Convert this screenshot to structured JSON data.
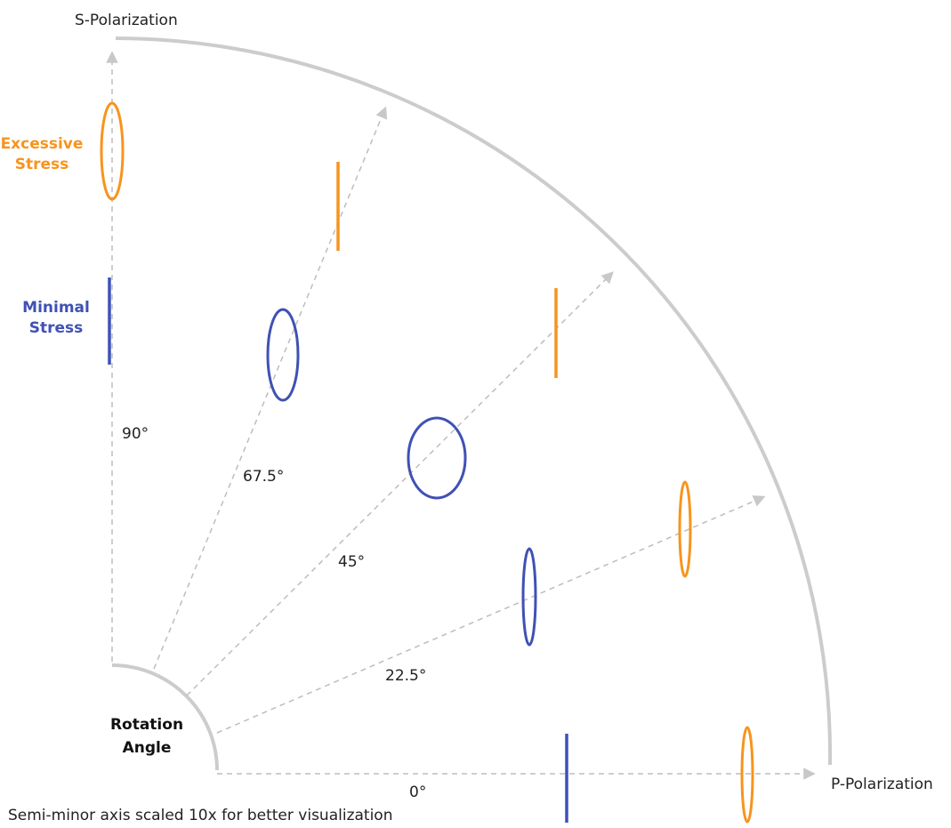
{
  "axes": {
    "s_polarization": "S-Polarization",
    "p_polarization": "P-Polarization"
  },
  "rotation_label": {
    "line1": "Rotation",
    "line2": "Angle"
  },
  "angles": {
    "a0": "0°",
    "a22": "22.5°",
    "a45": "45°",
    "a67": "67.5°",
    "a90": "90°"
  },
  "legend": {
    "excessive_line1": "Excessive",
    "excessive_line2": "Stress",
    "minimal_line1": "Minimal",
    "minimal_line2": "Stress"
  },
  "footnote": "Semi-minor axis scaled 10x for better visualization",
  "colors": {
    "excessive": "#f7941d",
    "minimal": "#3f51b5",
    "ray": "#bdbdbd",
    "arc": "#cccccc"
  }
}
